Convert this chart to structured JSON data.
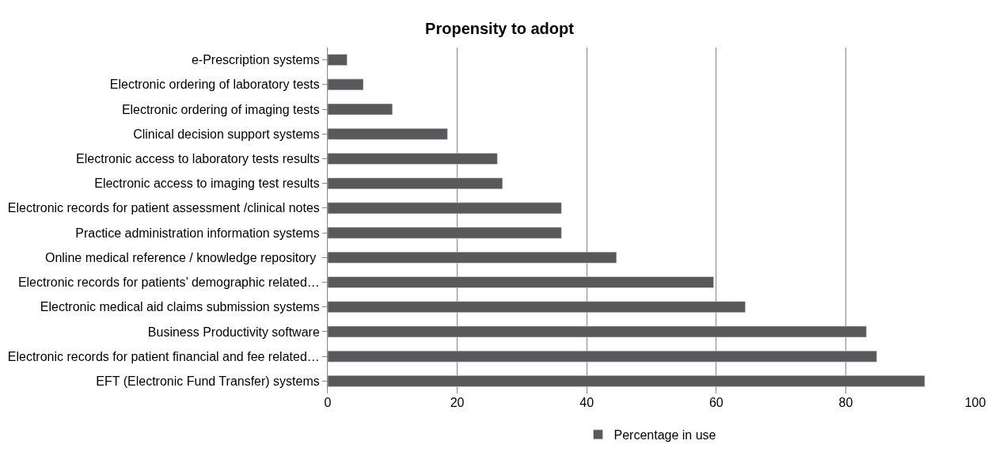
{
  "chart_data": {
    "type": "bar",
    "orientation": "horizontal",
    "title": "Propensity to adopt",
    "categories": [
      "e-Prescription systems",
      "Electronic ordering of laboratory tests",
      "Electronic ordering of imaging tests",
      "Clinical decision support systems",
      "Electronic access to laboratory tests results",
      "Electronic access to imaging test results",
      "Electronic records for patient assessment /clinical notes",
      "Practice administration information systems",
      "Online medical reference / knowledge repository ",
      "Electronic records for patients’ demographic related…",
      "Electronic medical aid claims submission systems",
      "Business Productivity software",
      "Electronic records for patient financial and fee related…",
      "EFT (Electronic Fund Transfer) systems"
    ],
    "series": [
      {
        "name": "Percentage in use",
        "color": "#595959",
        "values": [
          3.0,
          5.5,
          10.0,
          18.5,
          26.2,
          27.0,
          36.1,
          36.1,
          44.6,
          59.6,
          64.5,
          83.2,
          84.8,
          92.2
        ]
      }
    ],
    "xlim": [
      0,
      100
    ],
    "xticks": [
      0,
      20,
      40,
      60,
      80,
      100
    ],
    "grid": "x",
    "legend": "bottom"
  }
}
